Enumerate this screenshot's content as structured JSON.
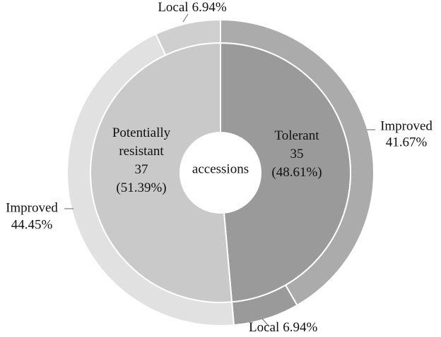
{
  "chart_data": {
    "type": "nested-donut",
    "center_label": "accessions",
    "inner": {
      "categories": [
        "Tolerant",
        "Potentially resistant"
      ],
      "values": [
        35,
        37
      ],
      "shares": [
        48.61,
        51.39
      ],
      "share_labels": [
        "(48.61%)",
        "(51.39%)"
      ],
      "colors": [
        "#9a9a9a",
        "#c9c9c9"
      ]
    },
    "outer": {
      "categories": [
        "Improved",
        "Local",
        "Improved",
        "Local"
      ],
      "values": [
        41.67,
        6.94,
        44.45,
        6.94
      ],
      "value_labels": [
        "41.67%",
        "6.94%",
        "44.45%",
        "6.94%"
      ],
      "colors": [
        "#ababab",
        "#9a9a9a",
        "#e1e1e1",
        "#cfcfcf"
      ]
    }
  }
}
